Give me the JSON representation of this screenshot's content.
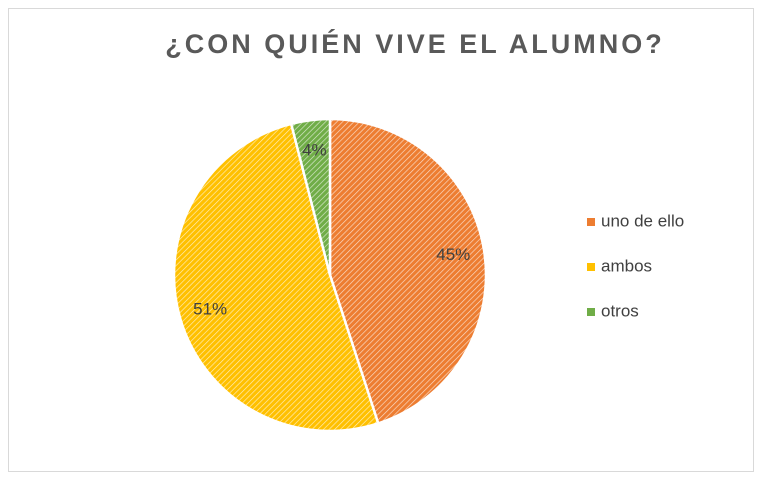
{
  "chart_data": {
    "type": "pie",
    "title": "¿CON QUIÉN VIVE EL ALUMNO?",
    "categories": [
      "uno de ello",
      "ambos",
      "otros"
    ],
    "values": [
      45,
      51,
      4
    ],
    "value_labels": [
      "45%",
      "51%",
      "4%"
    ],
    "colors": [
      "#ED7D31",
      "#FFC000",
      "#70AD47"
    ],
    "legend": "right"
  }
}
